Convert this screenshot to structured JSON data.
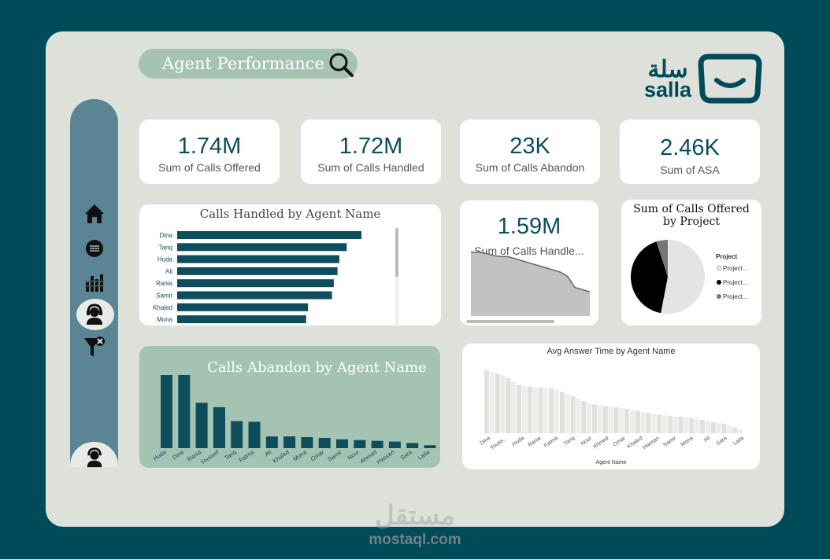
{
  "header": {
    "title": "Agent Performance"
  },
  "logo": {
    "arabic": "سلة",
    "latin": "salla"
  },
  "nav": {
    "items": [
      "home",
      "coin",
      "bar-chart",
      "agent",
      "filter"
    ]
  },
  "kpis": [
    {
      "value": "1.74M",
      "label": "Sum of Calls Offered"
    },
    {
      "value": "1.72M",
      "label": "Sum of Calls Handled"
    },
    {
      "value": "23K",
      "label": "Sum of Calls Abandon"
    },
    {
      "value": "2.46K",
      "label": "Sum of ASA"
    }
  ],
  "handled_card": {
    "value": "1.59M",
    "label": "Sum of Calls Handle..."
  },
  "chart_data": [
    {
      "type": "bar",
      "orientation": "horizontal",
      "title": "Calls Handled by Agent Name",
      "categories": [
        "Dina",
        "Tariq",
        "Huda",
        "Ali",
        "Rania",
        "Samir",
        "Khaled",
        "Mona"
      ],
      "values": [
        100,
        92,
        88,
        87,
        85,
        84,
        71,
        70
      ],
      "color": "#0e4d5c"
    },
    {
      "type": "area",
      "title": "",
      "values": [
        58,
        58,
        57,
        55,
        54,
        54,
        52,
        50,
        48,
        46,
        44,
        42,
        40,
        36,
        26,
        24,
        22
      ],
      "ylim": [
        0,
        100
      ],
      "color": "#c2c2c2"
    },
    {
      "type": "pie",
      "title": "Sum of Calls Offered by Project",
      "legend_title": "Project",
      "labels": [
        "Project...",
        "Project...",
        "Project..."
      ],
      "values": [
        53,
        42,
        5
      ],
      "colors": [
        "#e4e4e4",
        "#000000",
        "#767676"
      ]
    },
    {
      "type": "bar",
      "title": "Calls Abandon by Agent Name",
      "categories": [
        "Huda",
        "Dina",
        "Rania",
        "Youssef",
        "Tariq",
        "Fatma",
        "Ali",
        "Khaled",
        "Mona",
        "Omar",
        "Samir",
        "Nour",
        "Ahmed",
        "Hassan",
        "Sara",
        "Laila"
      ],
      "values": [
        100,
        100,
        62,
        56,
        37,
        36,
        16,
        16,
        15,
        14,
        12,
        11,
        10,
        9,
        7,
        4
      ],
      "color": "#0e4d5c"
    },
    {
      "type": "bar",
      "title": "Avg Answer Time by Agent Name",
      "xlabel": "Agent Name",
      "categories": [
        "Dina",
        "Youss...",
        "Huda",
        "Rania",
        "Fatma",
        "Tariq",
        "Nour",
        "Ahmed",
        "Omar",
        "Khaled",
        "Hassan",
        "Samir",
        "Mona",
        "Ali",
        "Sara",
        "Laila"
      ],
      "values": [
        100,
        92,
        75,
        73,
        71,
        60,
        48,
        43,
        40,
        35,
        30,
        27,
        25,
        20,
        15,
        7
      ],
      "color": "#e3e5df"
    }
  ],
  "watermark": {
    "arabic": "مستقل",
    "latin": "mostaql.com"
  }
}
